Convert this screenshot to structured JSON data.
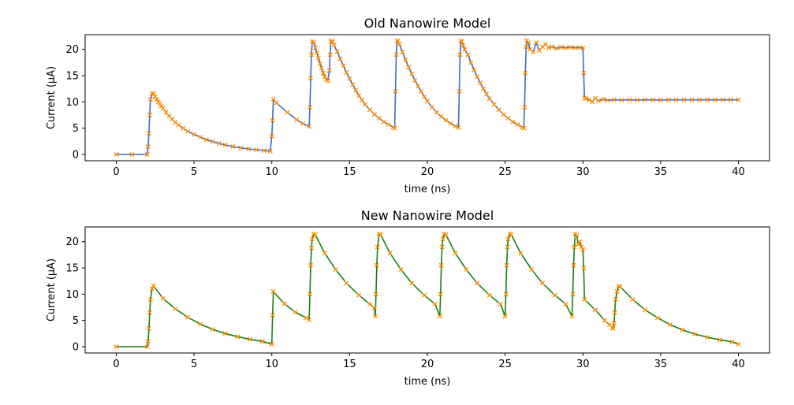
{
  "chart_data": [
    {
      "type": "line",
      "title": "Old Nanowire Model",
      "xlabel": "time (ns)",
      "ylabel": "Current (μA)",
      "xlim": [
        -2,
        42
      ],
      "ylim": [
        -1.2,
        22.8
      ],
      "xticks": [
        "0",
        "5",
        "10",
        "15",
        "20",
        "25",
        "30",
        "35",
        "40"
      ],
      "yticks": [
        "0",
        "5",
        "10",
        "15",
        "20"
      ],
      "grid": false,
      "series": [
        {
          "line_color": "#4169c9",
          "marker_color": "#ff8c00",
          "marker": "x",
          "x": [
            0,
            1.0,
            2.0,
            2.05,
            2.1,
            2.15,
            2.2,
            2.3,
            2.4,
            2.5,
            2.6,
            2.7,
            2.8,
            2.9,
            3.0,
            3.2,
            3.4,
            3.6,
            3.8,
            4.0,
            4.3,
            4.6,
            5.0,
            5.4,
            5.8,
            6.2,
            6.6,
            7.0,
            7.5,
            8.0,
            8.5,
            9.0,
            9.5,
            9.9,
            10.0,
            10.05,
            10.1,
            10.3,
            11.0,
            11.6,
            12.0,
            12.4,
            12.45,
            12.5,
            12.55,
            12.6,
            12.7,
            12.8,
            12.9,
            13.0,
            13.1,
            13.2,
            13.3,
            13.4,
            13.5,
            13.6,
            13.7,
            13.75,
            13.8,
            13.85,
            13.9,
            14.0,
            14.2,
            14.4,
            14.6,
            14.8,
            15.0,
            15.2,
            15.4,
            15.6,
            15.8,
            16.0,
            16.3,
            16.6,
            16.9,
            17.2,
            17.5,
            17.8,
            17.9,
            17.95,
            18.0,
            18.05,
            18.1,
            18.2,
            18.4,
            18.6,
            18.8,
            19.0,
            19.2,
            19.4,
            19.6,
            19.8,
            20.0,
            20.3,
            20.6,
            20.9,
            21.2,
            21.5,
            21.8,
            22.0,
            22.05,
            22.1,
            22.15,
            22.2,
            22.3,
            22.4,
            22.6,
            22.8,
            23.0,
            23.2,
            23.4,
            23.6,
            23.8,
            24.0,
            24.3,
            24.6,
            24.9,
            25.2,
            25.5,
            25.8,
            26.1,
            26.2,
            26.25,
            26.3,
            26.35,
            26.4,
            26.5,
            26.6,
            26.8,
            27.0,
            27.2,
            27.4,
            27.6,
            27.8,
            28.0,
            28.3,
            28.6,
            28.9,
            29.2,
            29.5,
            29.8,
            30.0,
            30.05,
            30.1,
            30.2,
            30.4,
            30.6,
            30.8,
            31.0,
            31.3,
            31.6,
            32.0,
            32.5,
            33.0,
            33.5,
            34.0,
            34.5,
            35.0,
            35.5,
            36.0,
            36.5,
            37.0,
            37.5,
            38.0,
            38.5,
            39.0,
            39.5,
            40.0
          ],
          "y": [
            0,
            0,
            0,
            1.5,
            4.0,
            7.5,
            10.5,
            11.6,
            11.5,
            11.0,
            10.5,
            10.0,
            9.6,
            9.2,
            8.8,
            8.0,
            7.3,
            6.7,
            6.1,
            5.6,
            5.0,
            4.4,
            3.8,
            3.3,
            2.8,
            2.45,
            2.1,
            1.8,
            1.5,
            1.25,
            1.05,
            0.9,
            0.75,
            0.65,
            3.5,
            6.5,
            10.5,
            9.8,
            8.0,
            6.6,
            5.9,
            5.3,
            9.0,
            14.5,
            19.0,
            21.5,
            21.3,
            20.3,
            19.3,
            18.3,
            17.3,
            16.4,
            15.5,
            14.8,
            14.3,
            14.0,
            16.0,
            19.0,
            21.5,
            21.6,
            21.4,
            20.8,
            19.6,
            18.2,
            16.9,
            15.6,
            14.4,
            13.3,
            12.2,
            11.2,
            10.3,
            9.5,
            8.5,
            7.6,
            6.9,
            6.2,
            5.7,
            5.2,
            5.0,
            12.0,
            19.0,
            21.6,
            21.6,
            21.0,
            19.5,
            18.0,
            16.6,
            15.3,
            14.1,
            13.0,
            12.0,
            11.0,
            10.1,
            9.0,
            8.0,
            7.2,
            6.5,
            5.9,
            5.4,
            5.1,
            12.0,
            19.0,
            21.6,
            21.5,
            20.8,
            20.0,
            19.0,
            17.5,
            16.1,
            14.8,
            13.6,
            12.5,
            11.5,
            10.6,
            9.5,
            8.5,
            7.6,
            6.9,
            6.2,
            5.7,
            5.2,
            5.0,
            9.0,
            15.5,
            20.5,
            21.7,
            21.3,
            20.0,
            19.5,
            21.3,
            19.8,
            20.5,
            21.0,
            20.3,
            20.5,
            20.2,
            20.4,
            20.3,
            20.4,
            20.3,
            20.35,
            20.3,
            15.5,
            10.8,
            10.6,
            10.4,
            10.0,
            10.7,
            10.2,
            10.5,
            10.3,
            10.4,
            10.35,
            10.4,
            10.35,
            10.4,
            10.4,
            10.35,
            10.4,
            10.4,
            10.4,
            10.4,
            10.4,
            10.4,
            10.4,
            10.4,
            10.4,
            10.4
          ]
        }
      ]
    },
    {
      "type": "line",
      "title": "New Nanowire Model",
      "xlabel": "time (ns)",
      "ylabel": "Current (μA)",
      "xlim": [
        -2,
        42
      ],
      "ylim": [
        -1.2,
        22.8
      ],
      "xticks": [
        "0",
        "5",
        "10",
        "15",
        "20",
        "25",
        "30",
        "35",
        "40"
      ],
      "yticks": [
        "0",
        "5",
        "10",
        "15",
        "20"
      ],
      "grid": false,
      "series": [
        {
          "line_color": "#1a7f10",
          "marker_color": "#ff8c00",
          "marker": "x",
          "x": [
            0,
            2.0,
            2.05,
            2.1,
            2.15,
            2.2,
            2.3,
            2.4,
            3.0,
            3.8,
            4.6,
            5.4,
            6.2,
            7.0,
            7.8,
            8.6,
            9.4,
            10.0,
            10.05,
            10.1,
            10.8,
            11.5,
            12.2,
            12.4,
            12.45,
            12.5,
            12.55,
            12.6,
            12.7,
            12.8,
            13.4,
            14.1,
            14.8,
            15.6,
            16.3,
            16.6,
            16.65,
            16.7,
            16.75,
            16.8,
            16.9,
            17.0,
            17.6,
            18.3,
            19.0,
            19.8,
            20.5,
            20.8,
            20.85,
            20.9,
            20.95,
            21.0,
            21.1,
            21.2,
            21.8,
            22.5,
            23.2,
            24.0,
            24.7,
            25.0,
            25.05,
            25.1,
            25.15,
            25.2,
            25.3,
            25.4,
            26.0,
            26.7,
            27.4,
            28.2,
            28.9,
            29.3,
            29.35,
            29.4,
            29.45,
            29.5,
            29.6,
            29.7,
            29.8,
            29.9,
            30.0,
            30.05,
            30.1,
            30.8,
            31.4,
            31.7,
            31.9,
            31.95,
            32.0,
            32.05,
            32.1,
            32.2,
            32.3,
            32.4,
            33.2,
            34.0,
            34.8,
            35.6,
            36.4,
            37.2,
            38.0,
            38.8,
            39.6,
            40.0
          ],
          "y": [
            0,
            0,
            1.0,
            3.5,
            6.5,
            9.0,
            11.0,
            11.6,
            9.2,
            7.2,
            5.6,
            4.3,
            3.3,
            2.5,
            1.9,
            1.4,
            1.0,
            0.5,
            6.0,
            10.5,
            8.2,
            6.6,
            5.5,
            5.1,
            10.0,
            15.5,
            18.8,
            20.5,
            21.5,
            21.3,
            17.8,
            14.7,
            12.1,
            9.8,
            8.1,
            7.4,
            5.8,
            10.0,
            15.5,
            19.0,
            21.5,
            21.3,
            17.8,
            14.7,
            12.1,
            9.8,
            8.1,
            5.8,
            10.0,
            15.5,
            19.0,
            20.5,
            21.5,
            21.3,
            17.8,
            14.7,
            12.1,
            9.8,
            8.1,
            5.8,
            10.0,
            15.5,
            19.0,
            20.5,
            21.5,
            21.3,
            17.8,
            14.7,
            12.1,
            9.8,
            8.1,
            5.8,
            10.0,
            15.5,
            19.0,
            21.5,
            21.2,
            19.5,
            20.0,
            19.0,
            18.5,
            15.0,
            9.0,
            7.0,
            5.0,
            4.2,
            3.6,
            3.5,
            4.5,
            6.5,
            9.0,
            10.5,
            11.5,
            11.4,
            9.0,
            7.0,
            5.5,
            4.2,
            3.2,
            2.4,
            1.8,
            1.3,
            0.9,
            0.5
          ]
        }
      ]
    }
  ]
}
